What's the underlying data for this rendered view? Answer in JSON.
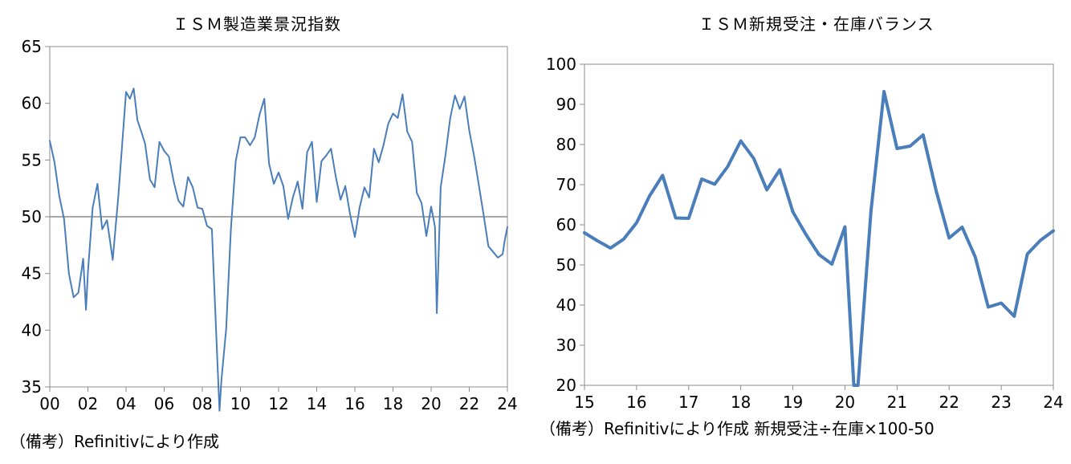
{
  "chart_data": [
    {
      "type": "line",
      "title": "ＩＳＭ製造業景況指数",
      "source": "（備考）Refinitivにより作成",
      "xlabel": "",
      "ylabel": "",
      "ylim": [
        35,
        65
      ],
      "xlim": [
        2000.0,
        2024.0
      ],
      "yticks": [
        "35",
        "40",
        "45",
        "50",
        "55",
        "60",
        "65"
      ],
      "xticks": [
        "00",
        "02",
        "04",
        "06",
        "08",
        "10",
        "12",
        "14",
        "16",
        "18",
        "20",
        "22",
        "24"
      ],
      "reference_line": 50,
      "line_color": "#4a7ebb",
      "reference_color": "#8c8c8c",
      "grid": false,
      "series": [
        {
          "x": [
            2000.0,
            2000.25,
            2000.5,
            2000.75,
            2001.0,
            2001.25,
            2001.5,
            2001.75,
            2001.9,
            2002.0,
            2002.25,
            2002.5,
            2002.75,
            2003.0,
            2003.3,
            2003.6,
            2004.0,
            2004.2,
            2004.4,
            2004.6,
            2004.8,
            2005.0,
            2005.25,
            2005.5,
            2005.75,
            2006.0,
            2006.25,
            2006.5,
            2006.75,
            2007.0,
            2007.25,
            2007.5,
            2007.75,
            2008.0,
            2008.25,
            2008.5,
            2008.75,
            2008.9,
            2009.0,
            2009.25,
            2009.5,
            2009.75,
            2010.0,
            2010.25,
            2010.5,
            2010.75,
            2011.0,
            2011.25,
            2011.5,
            2011.75,
            2012.0,
            2012.25,
            2012.5,
            2012.75,
            2013.0,
            2013.25,
            2013.5,
            2013.75,
            2014.0,
            2014.25,
            2014.5,
            2014.75,
            2015.0,
            2015.25,
            2015.5,
            2015.75,
            2016.0,
            2016.25,
            2016.5,
            2016.75,
            2017.0,
            2017.25,
            2017.5,
            2017.75,
            2018.0,
            2018.25,
            2018.5,
            2018.75,
            2019.0,
            2019.25,
            2019.5,
            2019.75,
            2020.0,
            2020.2,
            2020.3,
            2020.5,
            2020.75,
            2021.0,
            2021.25,
            2021.5,
            2021.75,
            2022.0,
            2022.25,
            2022.5,
            2022.75,
            2023.0,
            2023.25,
            2023.5,
            2023.75,
            2023.85,
            2024.0
          ],
          "values": [
            56.7,
            54.8,
            51.8,
            49.8,
            45.0,
            42.9,
            43.3,
            46.3,
            41.8,
            45.1,
            50.8,
            52.9,
            48.9,
            49.7,
            46.2,
            51.9,
            61.0,
            60.4,
            61.3,
            58.5,
            57.5,
            56.4,
            53.3,
            52.6,
            56.6,
            55.8,
            55.3,
            53.1,
            51.4,
            50.9,
            53.5,
            52.6,
            50.8,
            50.7,
            49.2,
            48.9,
            38.9,
            32.9,
            35.6,
            40.1,
            48.9,
            54.9,
            57.0,
            57.0,
            56.3,
            57.0,
            59.0,
            60.4,
            54.7,
            52.9,
            53.9,
            52.7,
            49.8,
            51.7,
            53.1,
            50.7,
            55.7,
            56.6,
            51.3,
            54.9,
            55.4,
            56.0,
            53.5,
            51.5,
            52.7,
            50.2,
            48.2,
            50.8,
            52.6,
            51.7,
            56.0,
            54.8,
            56.3,
            58.2,
            59.1,
            58.7,
            60.8,
            57.5,
            56.6,
            52.1,
            51.2,
            48.3,
            50.9,
            49.1,
            41.5,
            52.6,
            55.4,
            58.7,
            60.7,
            59.5,
            60.6,
            57.6,
            55.4,
            52.8,
            50.2,
            47.4,
            46.9,
            46.4,
            46.7,
            47.8,
            49.1
          ]
        }
      ]
    },
    {
      "type": "line",
      "title": "ＩＳＭ新規受注・在庫バランス",
      "source": "（備考）Refinitivにより作成 新規受注÷在庫×100-50",
      "xlabel": "",
      "ylabel": "",
      "ylim": [
        20,
        100
      ],
      "xlim": [
        2015.0,
        2024.0
      ],
      "yticks": [
        "20",
        "30",
        "40",
        "50",
        "60",
        "70",
        "80",
        "90",
        "100"
      ],
      "xticks": [
        "15",
        "16",
        "17",
        "18",
        "19",
        "20",
        "21",
        "22",
        "23",
        "24"
      ],
      "line_color": "#4a7ebb",
      "grid": false,
      "series": [
        {
          "x": [
            2015.0,
            2015.25,
            2015.5,
            2015.75,
            2016.0,
            2016.25,
            2016.5,
            2016.75,
            2017.0,
            2017.25,
            2017.5,
            2017.75,
            2018.0,
            2018.25,
            2018.5,
            2018.75,
            2019.0,
            2019.25,
            2019.5,
            2019.75,
            2020.0,
            2020.17,
            2020.25,
            2020.5,
            2020.75,
            2021.0,
            2021.25,
            2021.5,
            2021.75,
            2022.0,
            2022.25,
            2022.5,
            2022.75,
            2023.0,
            2023.25,
            2023.5,
            2023.75,
            2024.0
          ],
          "values": [
            58.0,
            56.0,
            54.2,
            56.4,
            60.5,
            67.2,
            72.3,
            61.7,
            61.6,
            71.4,
            70.1,
            74.5,
            80.9,
            76.5,
            68.7,
            73.7,
            63.2,
            57.6,
            52.6,
            50.2,
            59.5,
            20.0,
            20.0,
            63.5,
            93.2,
            79.0,
            79.6,
            82.4,
            68.5,
            56.7,
            59.4,
            52.0,
            39.5,
            40.5,
            37.2,
            52.7,
            56.1,
            58.5
          ]
        }
      ]
    }
  ]
}
